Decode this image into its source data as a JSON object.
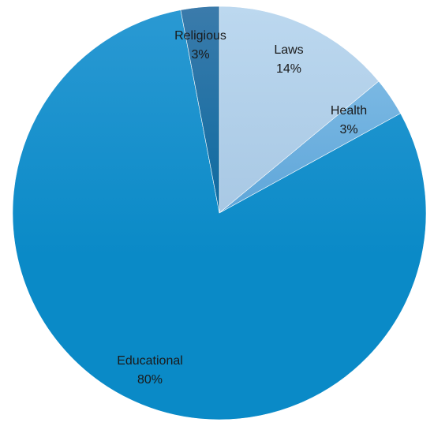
{
  "chart_data": {
    "type": "pie",
    "title": "",
    "slices": [
      {
        "label": "Laws",
        "value": 14,
        "value_label": "14%",
        "color": "#b7d4ec"
      },
      {
        "label": "Health",
        "value": 3,
        "value_label": "3%",
        "color": "#6fb1e0"
      },
      {
        "label": "Educational",
        "value": 80,
        "value_label": "80%",
        "color": "#1f8ec9"
      },
      {
        "label": "Religious",
        "value": 3,
        "value_label": "3%",
        "color": "#2a70a3"
      }
    ],
    "legend": "none",
    "start": "top (12 o'clock)",
    "direction": "clockwise"
  }
}
